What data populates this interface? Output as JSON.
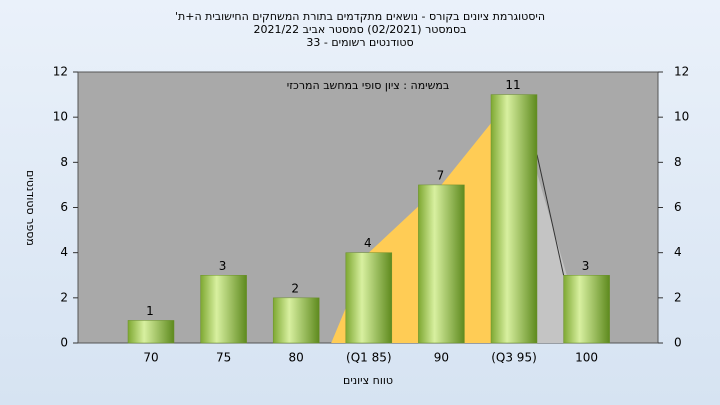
{
  "chart_data": {
    "type": "bar",
    "title_lines": [
      "היסטוגרמת ציונים בקורס - נושאים מתקדמים בתורת המשחקים החישובית ה+ת'",
      "בסמסטר (02/2021) סמסטר אביב 2021/22",
      "סטודנטים רשומים - 33"
    ],
    "annotation": "במשימה : ציון סופי במחשב המרכזי",
    "x_label": "טווח ציונים",
    "y_label": "מספר סטודנטים",
    "categories": [
      "70",
      "75",
      "80",
      "(Q1 85)",
      "90",
      "(Q3 95)",
      "100"
    ],
    "values": [
      1,
      3,
      2,
      4,
      7,
      11,
      3
    ],
    "color": "#9cc04a",
    "ylim": [
      0,
      12
    ],
    "yticks": [
      0,
      2,
      4,
      6,
      8,
      10,
      12
    ],
    "y2lim": [
      0,
      12
    ],
    "y2ticks": [
      0,
      2,
      4,
      6,
      8,
      10,
      12
    ],
    "grid": false
  }
}
